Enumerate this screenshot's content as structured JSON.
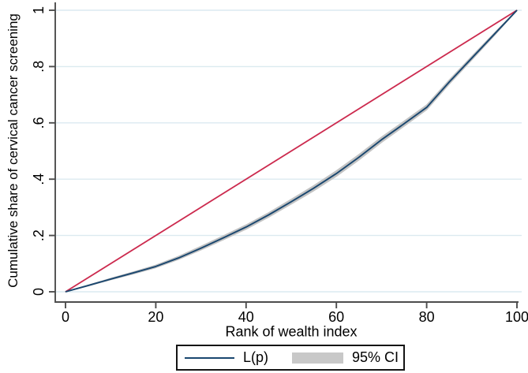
{
  "chart_data": {
    "type": "line",
    "title": "",
    "xlabel": "Rank of wealth index",
    "ylabel": "Cumulative share of cervical cancer screening",
    "xlim": [
      0,
      100
    ],
    "ylim": [
      0,
      1
    ],
    "grid": "horizontal-only",
    "legend_position": "bottom-center",
    "xticks": {
      "values": [
        0,
        20,
        40,
        60,
        80,
        100
      ],
      "labels": [
        "0",
        "20",
        "40",
        "60",
        "80",
        "100"
      ]
    },
    "yticks": {
      "values": [
        0,
        0.2,
        0.4,
        0.6,
        0.8,
        1
      ],
      "labels": [
        "0",
        ".2",
        ".4",
        ".6",
        ".8",
        "1"
      ]
    },
    "series": [
      {
        "name": "L(p)",
        "role": "lorenz-curve",
        "color": "#1a476f",
        "x": [
          0,
          5,
          10,
          15,
          20,
          25,
          30,
          35,
          40,
          45,
          50,
          55,
          60,
          65,
          70,
          75,
          80,
          85,
          90,
          95,
          100
        ],
        "y": [
          0,
          0.022,
          0.045,
          0.067,
          0.09,
          0.12,
          0.155,
          0.192,
          0.23,
          0.273,
          0.32,
          0.368,
          0.42,
          0.478,
          0.54,
          0.597,
          0.655,
          0.745,
          0.83,
          0.915,
          1
        ]
      },
      {
        "name": "line-of-equality",
        "role": "equality-diagonal",
        "color": "#cc2a4e",
        "x": [
          0,
          100
        ],
        "y": [
          0,
          1
        ]
      }
    ],
    "ci_band": {
      "name": "95% CI",
      "color": "#c3c3c3",
      "x": [
        0,
        5,
        10,
        15,
        20,
        25,
        30,
        35,
        40,
        45,
        50,
        55,
        60,
        65,
        70,
        75,
        80,
        85,
        90,
        95,
        100
      ],
      "half_width": [
        0,
        0.001,
        0.002,
        0.003,
        0.004,
        0.005,
        0.006,
        0.0065,
        0.007,
        0.0075,
        0.008,
        0.0085,
        0.009,
        0.009,
        0.009,
        0.0085,
        0.008,
        0.007,
        0.006,
        0.004,
        0
      ]
    },
    "legend": [
      {
        "label": "L(p)",
        "swatch": "line",
        "color": "#1a476f"
      },
      {
        "label": "95% CI",
        "swatch": "rect",
        "color": "#c8c8c8"
      }
    ],
    "colors": {
      "grid": "#dbeaf0",
      "axis": "#4d4d4d",
      "text": "#000000",
      "background": "#ffffff"
    }
  }
}
